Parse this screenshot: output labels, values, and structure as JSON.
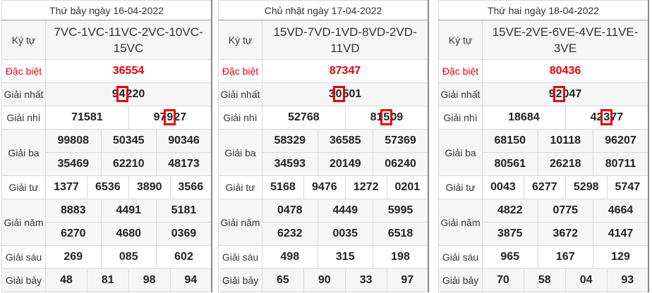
{
  "labels": {
    "ky_tu": "Ký tự",
    "dac_biet": "Đặc biệt",
    "nhat": "Giải nhất",
    "nhi": "Giải nhì",
    "ba": "Giải ba",
    "tu": "Giải tư",
    "nam": "Giải năm",
    "sau": "Giải sáu",
    "bay": "Giải bảy"
  },
  "colors": {
    "special": "#e8000f",
    "highlight_box": "#e8000f"
  },
  "days": [
    {
      "title": "Thứ bảy ngày 16-04-2022",
      "ky_tu": "7VC-1VC-11VC-2VC-10VC-15VC",
      "dac_biet": "36554",
      "nhat": {
        "value": "94220",
        "highlight_digit": 1
      },
      "nhi": [
        {
          "value": "71581"
        },
        {
          "value": "97927",
          "highlight_digit": 2
        }
      ],
      "ba": [
        "99808",
        "50345",
        "90346",
        "35469",
        "62210",
        "48173"
      ],
      "tu": [
        "1377",
        "6536",
        "3890",
        "3566"
      ],
      "nam": [
        "8883",
        "4491",
        "5181",
        "6270",
        "4680",
        "0369"
      ],
      "sau": [
        "269",
        "085",
        "602"
      ],
      "bay": [
        "48",
        "81",
        "98",
        "94"
      ]
    },
    {
      "title": "Chủ nhật ngày 17-04-2022",
      "ky_tu": "15VD-7VD-1VD-8VD-2VD-11VD",
      "dac_biet": "87347",
      "nhat": {
        "value": "30501",
        "highlight_digit": 1
      },
      "nhi": [
        {
          "value": "52768"
        },
        {
          "value": "81509",
          "highlight_digit": 2
        }
      ],
      "ba": [
        "58329",
        "36585",
        "57369",
        "34593",
        "20149",
        "06240"
      ],
      "tu": [
        "5168",
        "9476",
        "1272",
        "0201"
      ],
      "nam": [
        "0478",
        "4449",
        "5995",
        "6232",
        "0035",
        "6518"
      ],
      "sau": [
        "498",
        "315",
        "198"
      ],
      "bay": [
        "65",
        "90",
        "33",
        "97"
      ]
    },
    {
      "title": "Thứ hai ngày 18-04-2022",
      "ky_tu": "15VE-2VE-6VE-4VE-11VE-3VE",
      "dac_biet": "80436",
      "nhat": {
        "value": "92047",
        "highlight_digit": 1
      },
      "nhi": [
        {
          "value": "18684"
        },
        {
          "value": "42377",
          "highlight_digit": 2
        }
      ],
      "ba": [
        "68150",
        "10118",
        "96207",
        "80561",
        "26218",
        "80711"
      ],
      "tu": [
        "0043",
        "6277",
        "5298",
        "5747"
      ],
      "nam": [
        "4822",
        "0775",
        "4664",
        "3875",
        "3672",
        "4147"
      ],
      "sau": [
        "965",
        "167",
        "129"
      ],
      "bay": [
        "70",
        "58",
        "04",
        "93"
      ]
    }
  ]
}
